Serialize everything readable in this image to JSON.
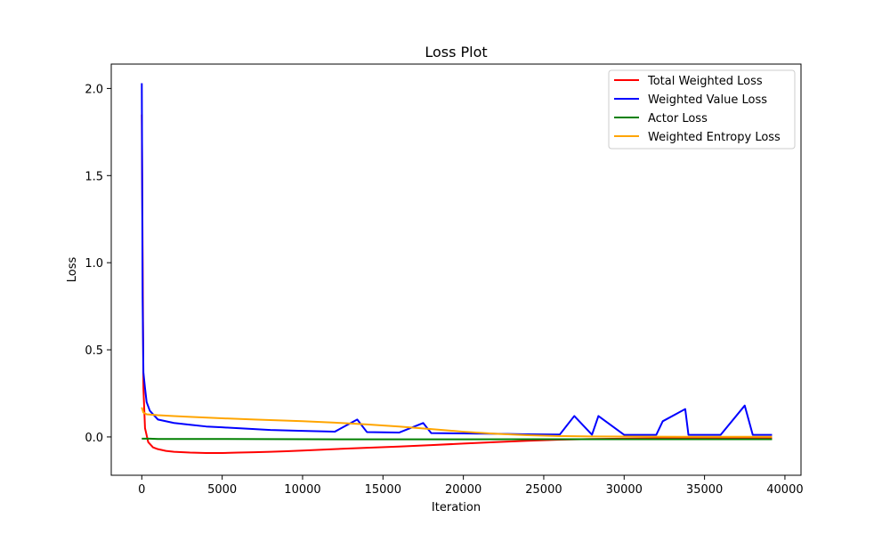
{
  "chart_data": {
    "type": "line",
    "title": "Loss Plot",
    "xlabel": "Iteration",
    "ylabel": "Loss",
    "xlim": [
      -1900,
      41000
    ],
    "ylim": [
      -0.22,
      2.14
    ],
    "x_ticks": [
      0,
      5000,
      10000,
      15000,
      20000,
      25000,
      30000,
      35000,
      40000
    ],
    "x_tick_labels": [
      "0",
      "5000",
      "10000",
      "15000",
      "20000",
      "25000",
      "30000",
      "35000",
      "40000"
    ],
    "y_ticks": [
      0.0,
      0.5,
      1.0,
      1.5,
      2.0
    ],
    "y_tick_labels": [
      "0.0",
      "0.5",
      "1.0",
      "1.5",
      "2.0"
    ],
    "grid": false,
    "legend_position": "top-right",
    "series": [
      {
        "name": "Total Weighted Loss",
        "color": "#ff0000",
        "x": [
          0,
          100,
          200,
          400,
          700,
          1000,
          1500,
          2000,
          3000,
          4000,
          5000,
          6000,
          7000,
          8000,
          9000,
          10000,
          12000,
          14000,
          16000,
          18000,
          20000,
          22000,
          24000,
          26000,
          28000,
          30000,
          32000,
          34000,
          36000,
          38000,
          39200
        ],
        "y": [
          1.85,
          0.28,
          0.05,
          -0.03,
          -0.06,
          -0.07,
          -0.08,
          -0.085,
          -0.09,
          -0.092,
          -0.092,
          -0.09,
          -0.088,
          -0.085,
          -0.082,
          -0.078,
          -0.07,
          -0.062,
          -0.055,
          -0.047,
          -0.038,
          -0.03,
          -0.022,
          -0.016,
          -0.012,
          -0.01,
          -0.008,
          -0.008,
          -0.007,
          -0.007,
          -0.007
        ]
      },
      {
        "name": "Weighted Value Loss",
        "color": "#0000ff",
        "x": [
          0,
          50,
          100,
          200,
          300,
          500,
          1000,
          2000,
          3000,
          4000,
          5000,
          6000,
          7000,
          8000,
          10000,
          12000,
          13400,
          14000,
          16000,
          17500,
          18000,
          20000,
          22000,
          24000,
          26000,
          26900,
          28000,
          28400,
          30000,
          32000,
          32400,
          34000,
          33800,
          36000,
          37500,
          38000,
          39200
        ],
        "y": [
          2.03,
          0.8,
          0.37,
          0.28,
          0.2,
          0.15,
          0.1,
          0.08,
          0.07,
          0.06,
          0.055,
          0.05,
          0.045,
          0.04,
          0.035,
          0.03,
          0.1,
          0.028,
          0.025,
          0.08,
          0.022,
          0.02,
          0.018,
          0.015,
          0.014,
          0.12,
          0.013,
          0.12,
          0.012,
          0.012,
          0.09,
          0.012,
          0.16,
          0.012,
          0.18,
          0.012,
          0.012
        ]
      },
      {
        "name": "Actor Loss",
        "color": "#008000",
        "x": [
          0,
          500,
          1000,
          2000,
          5000,
          10000,
          15000,
          20000,
          25000,
          30000,
          35000,
          39200
        ],
        "y": [
          -0.01,
          -0.01,
          -0.012,
          -0.012,
          -0.012,
          -0.013,
          -0.014,
          -0.014,
          -0.013,
          -0.013,
          -0.013,
          -0.013
        ]
      },
      {
        "name": "Weighted Entropy Loss",
        "color": "#ffa500",
        "x": [
          0,
          100,
          300,
          1000,
          2000,
          3000,
          5000,
          7000,
          10000,
          12000,
          14000,
          16000,
          18000,
          20000,
          22000,
          24000,
          26000,
          28000,
          30000,
          34000,
          39200
        ],
        "y": [
          0.17,
          0.14,
          0.13,
          0.125,
          0.12,
          0.115,
          0.107,
          0.1,
          0.09,
          0.082,
          0.072,
          0.06,
          0.045,
          0.03,
          0.018,
          0.01,
          0.005,
          0.003,
          0.002,
          0.001,
          0.001
        ]
      }
    ]
  }
}
